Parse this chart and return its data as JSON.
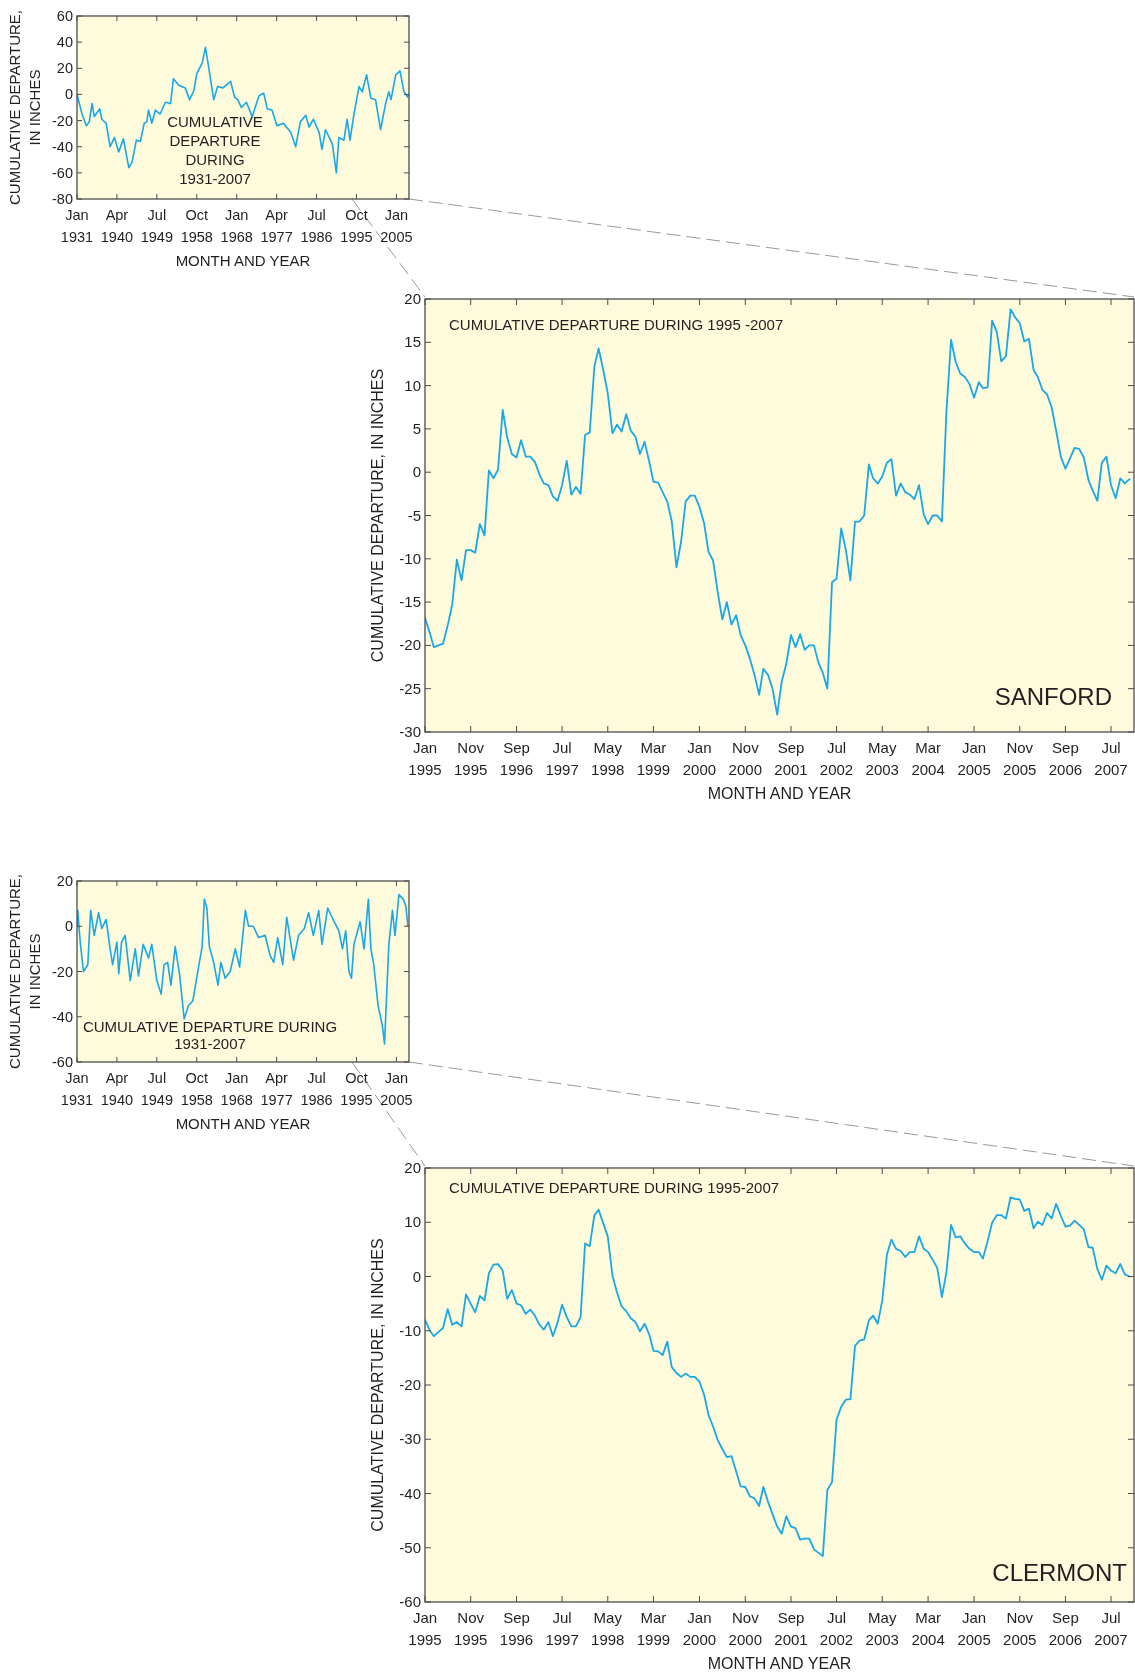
{
  "chart_data": [
    {
      "type": "line",
      "xlabel": "MONTH AND YEAR",
      "ylabel": "CUMULATIVE DEPARTURE, IN INCHES",
      "annotations": [
        "CUMULATIVE DEPARTURE DURING 1931-2007"
      ],
      "xlim": [
        "1931-01",
        "2007-12"
      ],
      "ylim": [
        -80,
        60
      ],
      "yticks": [
        -80,
        -60,
        -40,
        -20,
        0,
        20,
        40,
        60
      ],
      "xticks": [
        {
          "value": "1931-01",
          "label": "Jan 1931"
        },
        {
          "value": "1940-04",
          "label": "Apr 1940"
        },
        {
          "value": "1949-07",
          "label": "Jul 1949"
        },
        {
          "value": "1958-10",
          "label": "Oct 1958"
        },
        {
          "value": "1968-01",
          "label": "Jan 1968"
        },
        {
          "value": "1977-04",
          "label": "Apr 1977"
        },
        {
          "value": "1986-07",
          "label": "Jul 1986"
        },
        {
          "value": "1995-10",
          "label": "Oct 1995"
        },
        {
          "value": "2005-01",
          "label": "Jan 2005"
        }
      ],
      "x": [
        "1931-01",
        "1932-03",
        "1933-03",
        "1933-11",
        "1934-07",
        "1935-01",
        "1936-04",
        "1936-10",
        "1937-10",
        "1938-09",
        "1939-09",
        "1940-09",
        "1941-10",
        "1943-01",
        "1943-10",
        "1944-10",
        "1945-09",
        "1946-08",
        "1947-03",
        "1947-08",
        "1948-05",
        "1949-03",
        "1950-04",
        "1951-07",
        "1952-09",
        "1953-05",
        "1954-08",
        "1956-02",
        "1957-02",
        "1958-02",
        "1958-10",
        "1960-01",
        "1960-10",
        "1961-07",
        "1962-09",
        "1963-08",
        "1964-11",
        "1966-08",
        "1967-07",
        "1968-04",
        "1969-02",
        "1970-04",
        "1971-08",
        "1973-03",
        "1974-04",
        "1975-02",
        "1976-03",
        "1977-05",
        "1978-11",
        "1980-07",
        "1981-09",
        "1982-10",
        "1984-01",
        "1984-10",
        "1985-10",
        "1987-02",
        "1987-10",
        "1988-08",
        "1990-03",
        "1991-02",
        "1991-09",
        "1992-11",
        "1993-08",
        "1994-04",
        "1995-03",
        "1996-05",
        "1997-02",
        "1998-02",
        "1999-02",
        "2000-03",
        "2001-05",
        "2002-07",
        "2003-04",
        "2003-10",
        "2004-11",
        "2005-11",
        "2006-10",
        "2007-08",
        "2007-11"
      ],
      "series": [
        {
          "color": "#1aa7e6",
          "values": [
            0,
            -15,
            -24,
            -21,
            -7,
            -17,
            -11,
            -19,
            -22,
            -40,
            -33,
            -44,
            -34,
            -56,
            -52,
            -35,
            -36,
            -22,
            -21,
            -12,
            -22,
            -12,
            -15,
            -6,
            -7,
            12,
            7,
            5,
            -4,
            3,
            16,
            24,
            36,
            21,
            -4,
            6,
            5,
            10,
            -2,
            -4,
            -10,
            -6,
            -17,
            -1,
            1,
            -11,
            -12,
            -24,
            -22,
            -29,
            -40,
            -21,
            -16,
            -25,
            -19,
            -29,
            -42,
            -27,
            -38,
            -60,
            -33,
            -35,
            -19,
            -35,
            -15,
            6,
            2,
            15,
            -3,
            -4,
            -27,
            -7,
            2,
            -4,
            15,
            18,
            2,
            -2,
            0
          ]
        }
      ]
    },
    {
      "type": "line",
      "xlabel": "MONTH AND YEAR",
      "ylabel": "CUMULATIVE DEPARTURE, IN INCHES",
      "annotations": [
        "CUMULATIVE DEPARTURE DURING 1995 -2007",
        "SANFORD"
      ],
      "xlim": [
        "1995-01",
        "2007-12"
      ],
      "ylim": [
        -30,
        20
      ],
      "yticks": [
        -30,
        -25,
        -20,
        -15,
        -10,
        -5,
        0,
        5,
        10,
        15,
        20
      ],
      "xticks": [
        {
          "value": "1995-01",
          "label": "Jan 1995"
        },
        {
          "value": "1995-11",
          "label": "Nov 1995"
        },
        {
          "value": "1996-09",
          "label": "Sep 1996"
        },
        {
          "value": "1997-07",
          "label": "Jul 1997"
        },
        {
          "value": "1998-05",
          "label": "May 1998"
        },
        {
          "value": "1999-03",
          "label": "Mar 1999"
        },
        {
          "value": "2000-01",
          "label": "Jan 2000"
        },
        {
          "value": "2000-11",
          "label": "Nov 2000"
        },
        {
          "value": "2001-09",
          "label": "Sep 2001"
        },
        {
          "value": "2002-07",
          "label": "Jul 2002"
        },
        {
          "value": "2003-05",
          "label": "May 2003"
        },
        {
          "value": "2004-03",
          "label": "Mar 2004"
        },
        {
          "value": "2005-01",
          "label": "Jan 2005"
        },
        {
          "value": "2005-11",
          "label": "Nov 2005"
        },
        {
          "value": "2006-09",
          "label": "Sep 2006"
        },
        {
          "value": "2007-07",
          "label": "Jul 2007"
        }
      ],
      "x": [
        "1995-01",
        "1995-02",
        "1995-03",
        "1995-04",
        "1995-05",
        "1995-06",
        "1995-07",
        "1995-08",
        "1995-09",
        "1995-10",
        "1995-11",
        "1995-12",
        "1996-01",
        "1996-02",
        "1996-03",
        "1996-04",
        "1996-05",
        "1996-06",
        "1996-07",
        "1996-08",
        "1996-09",
        "1996-10",
        "1996-11",
        "1996-12",
        "1997-01",
        "1997-02",
        "1997-03",
        "1997-04",
        "1997-05",
        "1997-06",
        "1997-07",
        "1997-08",
        "1997-09",
        "1997-10",
        "1997-11",
        "1997-12",
        "1998-01",
        "1998-02",
        "1998-03",
        "1998-04",
        "1998-05",
        "1998-06",
        "1998-07",
        "1998-08",
        "1998-09",
        "1998-10",
        "1998-11",
        "1998-12",
        "1999-01",
        "1999-02",
        "1999-03",
        "1999-04",
        "1999-05",
        "1999-06",
        "1999-07",
        "1999-08",
        "1999-09",
        "1999-10",
        "1999-11",
        "1999-12",
        "2000-01",
        "2000-02",
        "2000-03",
        "2000-04",
        "2000-05",
        "2000-06",
        "2000-07",
        "2000-08",
        "2000-09",
        "2000-10",
        "2000-11",
        "2000-12",
        "2001-01",
        "2001-02",
        "2001-03",
        "2001-04",
        "2001-05",
        "2001-06",
        "2001-07",
        "2001-08",
        "2001-09",
        "2001-10",
        "2001-11",
        "2001-12",
        "2002-01",
        "2002-02",
        "2002-03",
        "2002-04",
        "2002-05",
        "2002-06",
        "2002-07",
        "2002-08",
        "2002-09",
        "2002-10",
        "2002-11",
        "2002-12",
        "2003-01",
        "2003-02",
        "2003-03",
        "2003-04",
        "2003-05",
        "2003-06",
        "2003-07",
        "2003-08",
        "2003-09",
        "2003-10",
        "2003-11",
        "2003-12",
        "2004-01",
        "2004-02",
        "2004-03",
        "2004-04",
        "2004-05",
        "2004-06",
        "2004-07",
        "2004-08",
        "2004-09",
        "2004-10",
        "2004-11",
        "2004-12",
        "2005-01",
        "2005-02",
        "2005-03",
        "2005-04",
        "2005-05",
        "2005-06",
        "2005-07",
        "2005-08",
        "2005-09",
        "2005-10",
        "2005-11",
        "2005-12",
        "2006-01",
        "2006-02",
        "2006-03",
        "2006-04",
        "2006-05",
        "2006-06",
        "2006-07",
        "2006-08",
        "2006-09",
        "2006-10",
        "2006-11",
        "2006-12",
        "2007-01",
        "2007-02",
        "2007-03",
        "2007-04",
        "2007-05",
        "2007-06",
        "2007-07",
        "2007-08",
        "2007-09",
        "2007-10",
        "2007-11"
      ],
      "series": [
        {
          "color": "#1aa7e6",
          "values": [
            -16.8,
            -18.5,
            -20.2,
            -20.0,
            -19.8,
            -17.7,
            -15.3,
            -10.1,
            -12.5,
            -9.0,
            -9.0,
            -9.3,
            -6.0,
            -7.3,
            0.2,
            -0.7,
            0.3,
            7.2,
            4.0,
            2.1,
            1.7,
            3.7,
            1.8,
            1.8,
            1.2,
            -0.3,
            -1.3,
            -1.5,
            -2.8,
            -3.3,
            -1.5,
            1.3,
            -2.6,
            -1.7,
            -2.5,
            4.3,
            4.6,
            12.2,
            14.3,
            11.8,
            9.1,
            4.5,
            5.5,
            4.7,
            6.7,
            4.8,
            4.1,
            2.1,
            3.5,
            1.2,
            -1.1,
            -1.2,
            -2.3,
            -3.4,
            -5.7,
            -11.0,
            -8.0,
            -3.4,
            -2.7,
            -2.7,
            -4.0,
            -5.9,
            -9.2,
            -10.2,
            -13.8,
            -17.0,
            -15.0,
            -17.6,
            -16.5,
            -18.8,
            -20.0,
            -21.5,
            -23.4,
            -25.7,
            -22.7,
            -23.4,
            -25.0,
            -28.0,
            -24.2,
            -22.1,
            -18.8,
            -20.2,
            -18.7,
            -20.5,
            -20.0,
            -20.0,
            -21.9,
            -23.2,
            -25.0,
            -12.7,
            -12.3,
            -6.5,
            -9.0,
            -12.5,
            -5.7,
            -5.7,
            -5.0,
            0.9,
            -0.7,
            -1.3,
            -0.5,
            1.1,
            1.5,
            -2.7,
            -1.3,
            -2.3,
            -2.6,
            -3.1,
            -1.5,
            -4.9,
            -6.0,
            -5.0,
            -5.0,
            -5.7,
            7.0,
            15.3,
            12.7,
            11.4,
            11.0,
            10.2,
            8.6,
            10.4,
            9.7,
            9.8,
            17.5,
            16.2,
            12.8,
            13.4,
            18.8,
            17.9,
            17.2,
            15.1,
            15.4,
            11.8,
            11.0,
            9.5,
            9.0,
            7.5,
            4.8,
            1.8,
            0.4,
            1.6,
            2.8,
            2.7,
            1.7,
            -0.9,
            -2.1,
            -3.3,
            1.1,
            1.8,
            -1.5,
            -3.0,
            -0.7,
            -1.3,
            -0.8
          ]
        }
      ]
    },
    {
      "type": "line",
      "xlabel": "MONTH AND YEAR",
      "ylabel": "CUMULATIVE DEPARTURE, IN INCHES",
      "annotations": [
        "CUMULATIVE DEPARTURE DURING 1931-2007"
      ],
      "xlim": [
        "1931-01",
        "2007-12"
      ],
      "ylim": [
        -60,
        20
      ],
      "yticks": [
        -60,
        -40,
        -20,
        0,
        20
      ],
      "xticks": [
        {
          "value": "1931-01",
          "label": "Jan 1931"
        },
        {
          "value": "1940-04",
          "label": "Apr 1940"
        },
        {
          "value": "1949-07",
          "label": "Jul 1949"
        },
        {
          "value": "1958-10",
          "label": "Oct 1958"
        },
        {
          "value": "1968-01",
          "label": "Jan 1968"
        },
        {
          "value": "1977-04",
          "label": "Apr 1977"
        },
        {
          "value": "1986-07",
          "label": "Jul 1986"
        },
        {
          "value": "1995-10",
          "label": "Oct 1995"
        },
        {
          "value": "2005-01",
          "label": "Jan 2005"
        }
      ],
      "x": [
        "1931-01",
        "1931-03",
        "1931-10",
        "1932-07",
        "1933-07",
        "1934-03",
        "1935-01",
        "1936-01",
        "1936-10",
        "1937-10",
        "1938-09",
        "1939-04",
        "1940-04",
        "1940-09",
        "1941-05",
        "1942-03",
        "1943-05",
        "1944-07",
        "1945-04",
        "1946-05",
        "1947-08",
        "1948-05",
        "1949-07",
        "1950-07",
        "1951-03",
        "1952-01",
        "1952-10",
        "1953-10",
        "1954-10",
        "1955-11",
        "1956-11",
        "1957-11",
        "1959-03",
        "1960-01",
        "1960-07",
        "1961-02",
        "1961-09",
        "1962-09",
        "1963-09",
        "1964-05",
        "1965-05",
        "1966-07",
        "1967-09",
        "1968-09",
        "1970-01",
        "1970-10",
        "1971-11",
        "1973-02",
        "1974-08",
        "1975-10",
        "1976-08",
        "1977-07",
        "1978-09",
        "1979-08",
        "1981-03",
        "1982-05",
        "1983-09",
        "1984-09",
        "1985-10",
        "1987-01",
        "1987-10",
        "1989-02",
        "1990-08",
        "1991-09",
        "1992-07",
        "1993-04",
        "1994-01",
        "1994-08",
        "1995-03",
        "1996-08",
        "1997-07",
        "1998-07",
        "1999-02",
        "1999-10",
        "2000-10",
        "2001-10",
        "2002-04",
        "2003-04",
        "2004-02",
        "2004-09",
        "2005-08",
        "2006-08",
        "2007-03",
        "2007-09"
      ],
      "series": [
        {
          "color": "#1aa7e6",
          "values": [
            0,
            7,
            -7,
            -20,
            -17,
            7,
            -4,
            6,
            -1,
            3,
            -10,
            -17,
            -7,
            -21,
            -7,
            -4,
            -24,
            -10,
            -22,
            -8,
            -14,
            -8,
            -24,
            -30,
            -17,
            -16,
            -26,
            -9,
            -21,
            -41,
            -35,
            -33,
            -18,
            -9,
            12,
            8,
            -9,
            -16,
            -26,
            -16,
            -23,
            -20,
            -10,
            -18,
            7,
            0,
            0,
            -5,
            -4,
            -13,
            -16,
            -5,
            -17,
            4,
            -15,
            -4,
            -1,
            6,
            -4,
            7,
            -8,
            8,
            2,
            -2,
            -10,
            -2,
            -20,
            -23,
            -8,
            2,
            -10,
            12,
            -10,
            -17,
            -35,
            -44,
            -52,
            -8,
            7,
            -4,
            14,
            12,
            9,
            0
          ]
        }
      ]
    },
    {
      "type": "line",
      "xlabel": "MONTH AND YEAR",
      "ylabel": "CUMULATIVE DEPARTURE, IN INCHES",
      "annotations": [
        "CUMULATIVE DEPARTURE DURING 1995-2007",
        "CLERMONT"
      ],
      "xlim": [
        "1995-01",
        "2007-12"
      ],
      "ylim": [
        -60,
        20
      ],
      "yticks": [
        -60,
        -50,
        -40,
        -30,
        -20,
        -10,
        0,
        10,
        20
      ],
      "xticks": [
        {
          "value": "1995-01",
          "label": "Jan 1995"
        },
        {
          "value": "1995-11",
          "label": "Nov 1995"
        },
        {
          "value": "1996-09",
          "label": "Sep 1996"
        },
        {
          "value": "1997-07",
          "label": "Jul 1997"
        },
        {
          "value": "1998-05",
          "label": "May 1998"
        },
        {
          "value": "1999-03",
          "label": "Mar 1999"
        },
        {
          "value": "2000-01",
          "label": "Jan 2000"
        },
        {
          "value": "2000-11",
          "label": "Nov 2000"
        },
        {
          "value": "2001-09",
          "label": "Sep 2001"
        },
        {
          "value": "2002-07",
          "label": "Jul 2002"
        },
        {
          "value": "2003-05",
          "label": "May 2003"
        },
        {
          "value": "2004-03",
          "label": "Mar 2004"
        },
        {
          "value": "2005-01",
          "label": "Jan 2005"
        },
        {
          "value": "2005-11",
          "label": "Nov 2005"
        },
        {
          "value": "2006-09",
          "label": "Sep 2006"
        },
        {
          "value": "2007-07",
          "label": "Jul 2007"
        }
      ],
      "x": [
        "1995-01",
        "1995-02",
        "1995-03",
        "1995-04",
        "1995-05",
        "1995-06",
        "1995-07",
        "1995-08",
        "1995-09",
        "1995-10",
        "1995-11",
        "1995-12",
        "1996-01",
        "1996-02",
        "1996-03",
        "1996-04",
        "1996-05",
        "1996-06",
        "1996-07",
        "1996-08",
        "1996-09",
        "1996-10",
        "1996-11",
        "1996-12",
        "1997-01",
        "1997-02",
        "1997-03",
        "1997-04",
        "1997-05",
        "1997-06",
        "1997-07",
        "1997-08",
        "1997-09",
        "1997-10",
        "1997-11",
        "1997-12",
        "1998-01",
        "1998-02",
        "1998-03",
        "1998-04",
        "1998-05",
        "1998-06",
        "1998-07",
        "1998-08",
        "1998-09",
        "1998-10",
        "1998-11",
        "1998-12",
        "1999-01",
        "1999-02",
        "1999-03",
        "1999-04",
        "1999-05",
        "1999-06",
        "1999-07",
        "1999-08",
        "1999-09",
        "1999-10",
        "1999-11",
        "1999-12",
        "2000-01",
        "2000-02",
        "2000-03",
        "2000-04",
        "2000-05",
        "2000-06",
        "2000-07",
        "2000-08",
        "2000-09",
        "2000-10",
        "2000-11",
        "2000-12",
        "2001-01",
        "2001-02",
        "2001-03",
        "2001-04",
        "2001-05",
        "2001-06",
        "2001-07",
        "2001-08",
        "2001-09",
        "2001-10",
        "2001-11",
        "2001-12",
        "2002-01",
        "2002-02",
        "2002-03",
        "2002-04",
        "2002-05",
        "2002-06",
        "2002-07",
        "2002-08",
        "2002-09",
        "2002-10",
        "2002-11",
        "2002-12",
        "2003-01",
        "2003-02",
        "2003-03",
        "2003-04",
        "2003-05",
        "2003-06",
        "2003-07",
        "2003-08",
        "2003-09",
        "2003-10",
        "2003-11",
        "2003-12",
        "2004-01",
        "2004-02",
        "2004-03",
        "2004-04",
        "2004-05",
        "2004-06",
        "2004-07",
        "2004-08",
        "2004-09",
        "2004-10",
        "2004-11",
        "2004-12",
        "2005-01",
        "2005-02",
        "2005-03",
        "2005-04",
        "2005-05",
        "2005-06",
        "2005-07",
        "2005-08",
        "2005-09",
        "2005-10",
        "2005-11",
        "2005-12",
        "2006-01",
        "2006-02",
        "2006-03",
        "2006-04",
        "2006-05",
        "2006-06",
        "2006-07",
        "2006-08",
        "2006-09",
        "2006-10",
        "2006-11",
        "2006-12",
        "2007-01",
        "2007-02",
        "2007-03",
        "2007-04",
        "2007-05",
        "2007-06",
        "2007-07",
        "2007-08",
        "2007-09",
        "2007-10",
        "2007-11"
      ],
      "series": [
        {
          "color": "#1aa7e6",
          "values": [
            -8.0,
            -9.9,
            -11.0,
            -10.2,
            -9.5,
            -6.0,
            -8.9,
            -8.4,
            -9.2,
            -3.3,
            -5.0,
            -6.6,
            -3.6,
            -4.4,
            0.6,
            2.2,
            2.3,
            1.1,
            -4.1,
            -2.5,
            -5.0,
            -5.3,
            -6.9,
            -6.1,
            -7.2,
            -8.9,
            -9.8,
            -8.4,
            -11.0,
            -8.5,
            -5.2,
            -7.5,
            -9.2,
            -9.2,
            -7.5,
            6.1,
            5.6,
            11.3,
            12.3,
            9.8,
            7.4,
            0.2,
            -2.9,
            -5.5,
            -6.4,
            -7.7,
            -8.4,
            -10.1,
            -8.7,
            -10.7,
            -13.7,
            -13.8,
            -14.5,
            -12.0,
            -16.7,
            -17.8,
            -18.5,
            -17.9,
            -18.5,
            -18.5,
            -19.4,
            -21.8,
            -25.5,
            -27.7,
            -30.1,
            -31.8,
            -33.3,
            -33.1,
            -35.9,
            -38.7,
            -38.8,
            -40.5,
            -40.9,
            -42.3,
            -38.8,
            -41.5,
            -43.8,
            -46.1,
            -47.4,
            -44.2,
            -46.1,
            -46.4,
            -48.5,
            -48.3,
            -48.3,
            -50.3,
            -50.9,
            -51.5,
            -39.3,
            -37.9,
            -26.4,
            -24.0,
            -22.7,
            -22.6,
            -12.8,
            -11.8,
            -11.6,
            -8.1,
            -7.2,
            -8.7,
            -4.5,
            4.0,
            6.8,
            5.1,
            4.7,
            3.6,
            4.5,
            4.5,
            7.4,
            5.1,
            4.5,
            3.1,
            1.6,
            -3.8,
            0.8,
            9.5,
            7.2,
            7.4,
            6.1,
            5.1,
            4.5,
            4.5,
            3.3,
            6.5,
            9.9,
            11.3,
            11.3,
            10.7,
            14.6,
            14.3,
            14.2,
            12.1,
            12.5,
            8.9,
            10.1,
            9.5,
            11.7,
            10.7,
            13.4,
            11.2,
            9.2,
            9.4,
            10.3,
            9.5,
            8.7,
            5.4,
            5.3,
            1.4,
            -0.6,
            2.0,
            1.1,
            0.6,
            2.3,
            0.4,
            0.0
          ]
        }
      ]
    }
  ]
}
